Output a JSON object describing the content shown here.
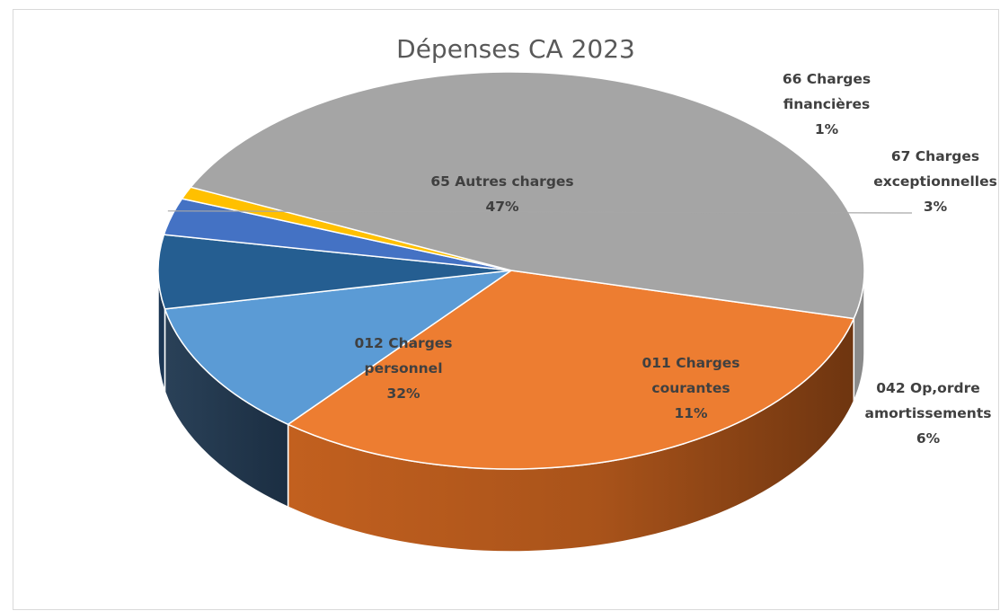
{
  "chart_data": {
    "type": "pie",
    "title": "Dépenses CA 2023",
    "slices": [
      {
        "name": "012 Charges personnel",
        "label_lines": [
          "012 Charges",
          "personnel"
        ],
        "percent_label": "32%",
        "value": 32,
        "color": "#ED7D31",
        "side_dark": "#8F4514",
        "side_light": "#C86A28"
      },
      {
        "name": "011 Charges courantes",
        "label_lines": [
          "011 Charges",
          "courantes"
        ],
        "percent_label": "11%",
        "value": 11,
        "color": "#5B9BD5",
        "side_dark": "#1F3147",
        "side_light": "#2B4560"
      },
      {
        "name": "042 Op,ordre amortissements",
        "label_lines": [
          "042 Op,ordre",
          "amortissements"
        ],
        "percent_label": "6%",
        "value": 6,
        "color": "#255E91",
        "side_dark": "#14293F",
        "side_light": "#1C3654"
      },
      {
        "name": "67 Charges exceptionnelles",
        "label_lines": [
          "67 Charges",
          "exceptionnelles"
        ],
        "percent_label": "3%",
        "value": 3,
        "color": "#4472C4",
        "side_dark": "#2A4A80",
        "side_light": "#3559A0"
      },
      {
        "name": "66 Charges financières",
        "label_lines": [
          "66 Charges",
          "financières"
        ],
        "percent_label": "1%",
        "value": 1,
        "color": "#FFC000",
        "side_dark": "#8F6C00",
        "side_light": "#BF9000"
      },
      {
        "name": "65 Autres charges",
        "label_lines": [
          "65 Autres charges"
        ],
        "percent_label": "47%",
        "value": 47,
        "color": "#A5A5A5",
        "side_dark": "#6E6E6E",
        "side_light": "#8A8A8A"
      }
    ]
  }
}
